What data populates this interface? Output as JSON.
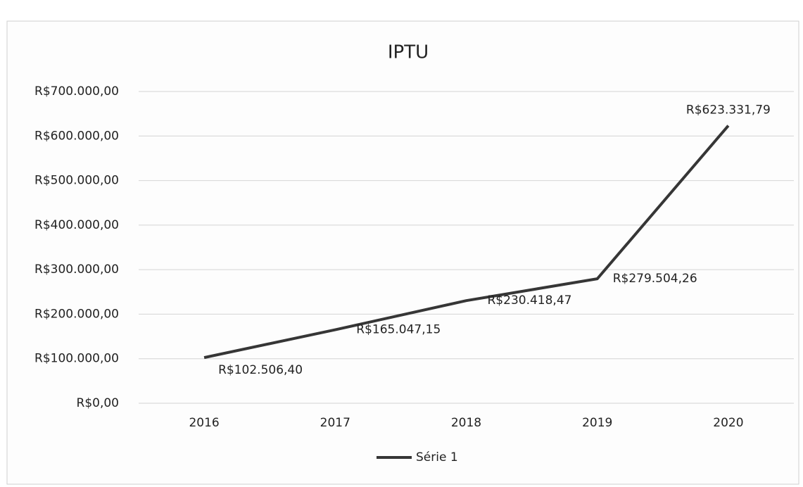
{
  "chart_data": {
    "type": "line",
    "title": "IPTU",
    "categories": [
      "2016",
      "2017",
      "2018",
      "2019",
      "2020"
    ],
    "series": [
      {
        "name": "Série 1",
        "color": "#363636",
        "values": [
          102506.4,
          165047.15,
          230418.47,
          279504.26,
          623331.79
        ],
        "value_labels": [
          "R$102.506,40",
          "R$165.047,15",
          "R$230.418,47",
          "R$279.504,26",
          "R$623.331,79"
        ]
      }
    ],
    "ylim": [
      0,
      700000
    ],
    "yticks": [
      {
        "value": 0,
        "label": "R$0,00"
      },
      {
        "value": 100000,
        "label": "R$100.000,00"
      },
      {
        "value": 200000,
        "label": "R$200.000,00"
      },
      {
        "value": 300000,
        "label": "R$300.000,00"
      },
      {
        "value": 400000,
        "label": "R$400.000,00"
      },
      {
        "value": 500000,
        "label": "R$500.000,00"
      },
      {
        "value": 600000,
        "label": "R$600.000,00"
      },
      {
        "value": 700000,
        "label": "R$700.000,00"
      }
    ],
    "grid": true,
    "legend": "bottom"
  }
}
